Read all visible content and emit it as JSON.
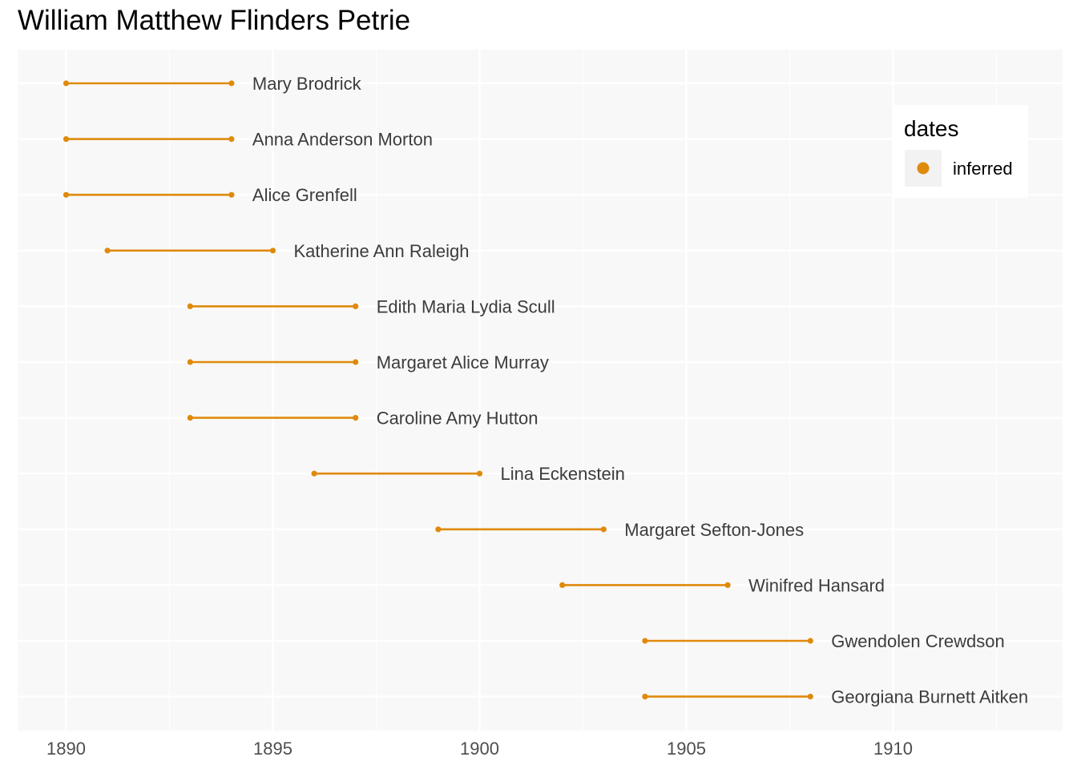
{
  "chart_data": {
    "type": "dumbbell",
    "title": "William Matthew Flinders Petrie",
    "xlabel": "",
    "ylabel": "",
    "xlim": [
      1888.8,
      1913.9
    ],
    "x_ticks": [
      1890,
      1895,
      1900,
      1905,
      1910
    ],
    "grid": true,
    "legend": {
      "title": "dates",
      "placement": "top-right",
      "entries": [
        {
          "label": "inferred",
          "color": "#E08A0B"
        }
      ]
    },
    "colors": {
      "series": "#E08A0B",
      "panel_background": "#F8F8F8",
      "grid": "#FFFFFF"
    },
    "series": [
      {
        "name": "inferred",
        "rows": [
          {
            "label": "Mary Brodrick",
            "start": 1890,
            "end": 1894
          },
          {
            "label": "Anna Anderson Morton",
            "start": 1890,
            "end": 1894
          },
          {
            "label": "Alice Grenfell",
            "start": 1890,
            "end": 1894
          },
          {
            "label": "Katherine Ann Raleigh",
            "start": 1891,
            "end": 1895
          },
          {
            "label": "Edith Maria Lydia Scull",
            "start": 1893,
            "end": 1897
          },
          {
            "label": "Margaret Alice Murray",
            "start": 1893,
            "end": 1897
          },
          {
            "label": "Caroline Amy Hutton",
            "start": 1893,
            "end": 1897
          },
          {
            "label": "Lina Eckenstein",
            "start": 1896,
            "end": 1900
          },
          {
            "label": "Margaret Sefton-Jones",
            "start": 1899,
            "end": 1903
          },
          {
            "label": "Winifred Hansard",
            "start": 1902,
            "end": 1906
          },
          {
            "label": "Gwendolen Crewdson",
            "start": 1904,
            "end": 1908
          },
          {
            "label": "Georgiana Burnett Aitken",
            "start": 1904,
            "end": 1908
          }
        ]
      }
    ]
  }
}
